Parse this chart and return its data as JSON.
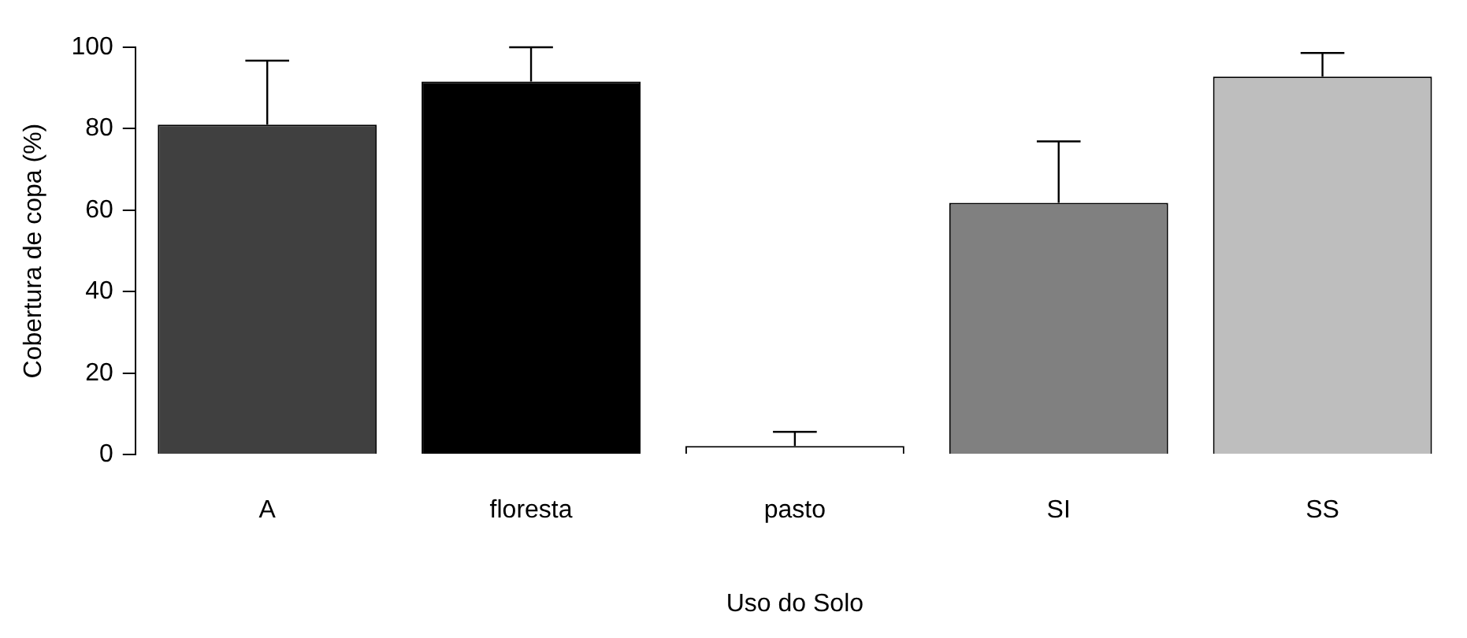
{
  "chart_data": {
    "type": "bar",
    "xlabel": "Uso do Solo",
    "ylabel": "Cobertura de copa (%)",
    "categories": [
      "A",
      "floresta",
      "pasto",
      "SI",
      "SS"
    ],
    "values": [
      81.0,
      91.6,
      2.1,
      61.8,
      92.8
    ],
    "colors": [
      "#404040",
      "#000000",
      "#ffffff",
      "#808080",
      "#bebebe"
    ],
    "errors": [
      [
        81.0,
        96.7
      ],
      [
        91.6,
        100
      ],
      [
        2.1,
        5.6
      ],
      [
        61.8,
        76.9
      ],
      [
        92.8,
        98.6
      ]
    ],
    "ylim": [
      0,
      100
    ],
    "yticks": [
      0,
      20,
      40,
      60,
      80,
      100
    ],
    "grid": false,
    "legend": false
  }
}
